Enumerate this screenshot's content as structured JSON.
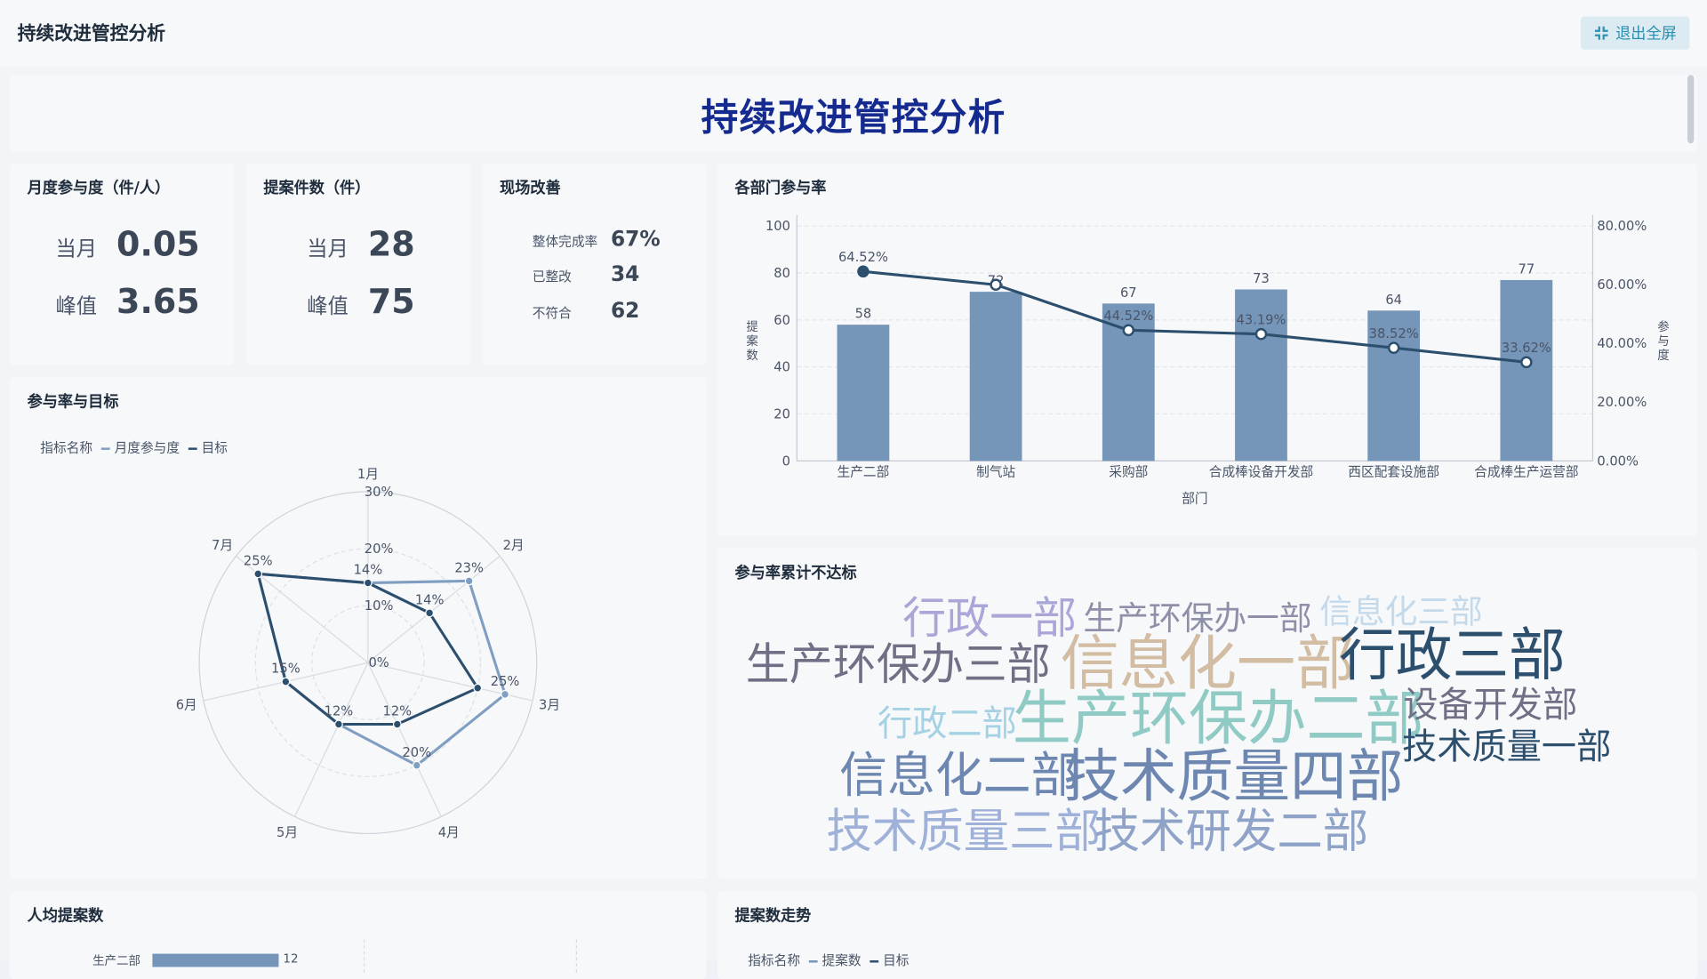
{
  "topbar": {
    "title": "持续改进管控分析",
    "exit_label": "退出全屏"
  },
  "banner": {
    "title": "持续改进管控分析"
  },
  "kpi_participation": {
    "title": "月度参与度（件/人）",
    "current_label": "当月",
    "current_value": "0.05",
    "peak_label": "峰值",
    "peak_value": "3.65"
  },
  "kpi_proposals": {
    "title": "提案件数（件）",
    "current_label": "当月",
    "current_value": "28",
    "peak_label": "峰值",
    "peak_value": "75"
  },
  "kpi_site": {
    "title": "现场改善",
    "rows": [
      {
        "label": "整体完成率",
        "value": "67%"
      },
      {
        "label": "已整改",
        "value": "34"
      },
      {
        "label": "不符合",
        "value": "62"
      }
    ]
  },
  "radar_card": {
    "title": "参与率与目标",
    "legend_title": "指标名称",
    "legend_items": [
      "月度参与度",
      "目标"
    ]
  },
  "dept_card": {
    "title": "各部门参与率",
    "ylabel_left": "提案数",
    "ylabel_right": "参与度",
    "xlabel": "部门"
  },
  "cloud_card": {
    "title": "参与率累计不达标"
  },
  "per_capita_card": {
    "title": "人均提案数",
    "first_category": "生产二部",
    "first_value": "12"
  },
  "trend_card": {
    "title": "提案数走势",
    "legend_title": "指标名称",
    "legend_items": [
      "提案数",
      "目标"
    ]
  },
  "colors": {
    "accent": "#152a8f",
    "bar": "#7595b9",
    "line": "#2c4f6e",
    "radar_series": "#7f9ec2",
    "radar_target": "#2c4f6e"
  },
  "chart_data": [
    {
      "type": "radar",
      "categories": [
        "1月",
        "2月",
        "3月",
        "4月",
        "5月",
        "6月",
        "7月"
      ],
      "axis_ticks": [
        "0%",
        "10%",
        "20%",
        "30%"
      ],
      "series": [
        {
          "name": "月度参与度",
          "values": [
            14,
            23,
            25,
            20,
            12,
            15,
            25
          ]
        },
        {
          "name": "目标",
          "values": [
            14,
            14,
            20,
            12,
            12,
            15,
            25
          ]
        }
      ],
      "data_labels": [
        "14%",
        "23%",
        "25%",
        "20%",
        "12%",
        "15%",
        "25%",
        "14%",
        "12%"
      ]
    },
    {
      "type": "bar-line",
      "categories": [
        "生产二部",
        "制气站",
        "采购部",
        "合成棒设备开发部",
        "西区配套设施部",
        "合成棒生产运营部"
      ],
      "bar_values": [
        58,
        72,
        67,
        73,
        64,
        77
      ],
      "line_values": [
        64.52,
        60.0,
        44.52,
        43.19,
        38.52,
        33.62
      ],
      "line_labels": [
        "64.52%",
        "",
        "44.52%",
        "43.19%",
        "38.52%",
        "33.62%"
      ],
      "y_left_ticks": [
        "0",
        "20",
        "40",
        "60",
        "80",
        "100"
      ],
      "y_right_ticks": [
        "0.00%",
        "20.00%",
        "40.00%",
        "60.00%",
        "80.00%"
      ]
    }
  ],
  "word_cloud": [
    {
      "text": "行政一部",
      "size": 40,
      "color": "#a9a6d8"
    },
    {
      "text": "生产环保办一部",
      "size": 30,
      "color": "#8e8fa8"
    },
    {
      "text": "信息化三部",
      "size": 30,
      "color": "#c4d9ea"
    },
    {
      "text": "生产环保办三部",
      "size": 40,
      "color": "#6f7085"
    },
    {
      "text": "信息化一部",
      "size": 54,
      "color": "#d2bda3"
    },
    {
      "text": "行政三部",
      "size": 52,
      "color": "#2c4f6e"
    },
    {
      "text": "行政二部",
      "size": 32,
      "color": "#a4d1e3"
    },
    {
      "text": "生产环保办二部",
      "size": 54,
      "color": "#8fcac5"
    },
    {
      "text": "设备开发部",
      "size": 32,
      "color": "#6f7085"
    },
    {
      "text": "技术质量一部",
      "size": 32,
      "color": "#2c4f6e"
    },
    {
      "text": "信息化二部",
      "size": 44,
      "color": "#6d87b1"
    },
    {
      "text": "技术质量四部",
      "size": 52,
      "color": "#6d87b1"
    },
    {
      "text": "技术质量三部",
      "size": 42,
      "color": "#9fb1d9"
    },
    {
      "text": "技术研发二部",
      "size": 42,
      "color": "#8fa2c8"
    }
  ]
}
